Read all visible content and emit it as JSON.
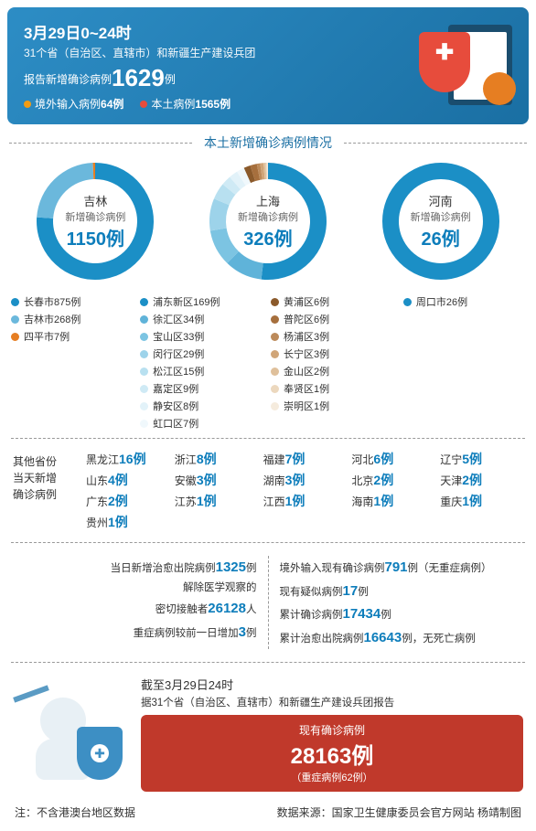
{
  "header": {
    "date": "3月29日0~24时",
    "sub": "31个省（自治区、直辖市）和新疆生产建设兵团",
    "main_prefix": "报告新增确诊病例",
    "main_num": "1629",
    "main_suffix": "例",
    "b1_label": "境外输入病例",
    "b1_num": "64例",
    "b1_color": "#f39c12",
    "b2_label": "本土病例",
    "b2_num": "1565例",
    "b2_color": "#e74c3c"
  },
  "section_title": "本土新增确诊病例情况",
  "donuts": {
    "ring_width": 18,
    "charts": [
      {
        "name": "吉林",
        "sub": "新增确诊病例",
        "num": "1150例",
        "slices": [
          {
            "label": "长春市875例",
            "value": 875,
            "color": "#1b8fc6"
          },
          {
            "label": "吉林市268例",
            "value": 268,
            "color": "#6bb8dc"
          },
          {
            "label": "四平市7例",
            "value": 7,
            "color": "#e67e22"
          }
        ]
      },
      {
        "name": "上海",
        "sub": "新增确诊病例",
        "num": "326例",
        "slices": [
          {
            "label": "浦东新区169例",
            "value": 169,
            "color": "#1b8fc6"
          },
          {
            "label": "徐汇区34例",
            "value": 34,
            "color": "#5fb3d9"
          },
          {
            "label": "宝山区33例",
            "value": 33,
            "color": "#7cc4e2"
          },
          {
            "label": "闵行区29例",
            "value": 29,
            "color": "#9dd3ea"
          },
          {
            "label": "松江区15例",
            "value": 15,
            "color": "#b8e0f0"
          },
          {
            "label": "嘉定区9例",
            "value": 9,
            "color": "#cfeaf5"
          },
          {
            "label": "静安区8例",
            "value": 8,
            "color": "#e2f2f9"
          },
          {
            "label": "虹口区7例",
            "value": 7,
            "color": "#f0f8fc"
          },
          {
            "label": "黄浦区6例",
            "value": 6,
            "color": "#8b5a2b"
          },
          {
            "label": "普陀区6例",
            "value": 6,
            "color": "#a66f3d"
          },
          {
            "label": "杨浦区3例",
            "value": 3,
            "color": "#bc8a5a"
          },
          {
            "label": "长宁区3例",
            "value": 3,
            "color": "#d0a578"
          },
          {
            "label": "金山区2例",
            "value": 2,
            "color": "#dfc09b"
          },
          {
            "label": "奉贤区1例",
            "value": 1,
            "color": "#ecd8be"
          },
          {
            "label": "崇明区1例",
            "value": 1,
            "color": "#f5ebdd"
          }
        ]
      },
      {
        "name": "河南",
        "sub": "新增确诊病例",
        "num": "26例",
        "slices": [
          {
            "label": "周口市26例",
            "value": 26,
            "color": "#1b8fc6"
          }
        ]
      }
    ]
  },
  "others": {
    "label_l1": "其他省份",
    "label_l2": "当天新增",
    "label_l3": "确诊病例",
    "items": [
      {
        "name": "黑龙江",
        "num": "16例"
      },
      {
        "name": "浙江",
        "num": "8例"
      },
      {
        "name": "福建",
        "num": "7例"
      },
      {
        "name": "河北",
        "num": "6例"
      },
      {
        "name": "辽宁",
        "num": "5例"
      },
      {
        "name": "山东",
        "num": "4例"
      },
      {
        "name": "安徽",
        "num": "3例"
      },
      {
        "name": "湖南",
        "num": "3例"
      },
      {
        "name": "北京",
        "num": "2例"
      },
      {
        "name": "天津",
        "num": "2例"
      },
      {
        "name": "广东",
        "num": "2例"
      },
      {
        "name": "江苏",
        "num": "1例"
      },
      {
        "name": "江西",
        "num": "1例"
      },
      {
        "name": "海南",
        "num": "1例"
      },
      {
        "name": "重庆",
        "num": "1例"
      },
      {
        "name": "贵州",
        "num": "1例"
      }
    ]
  },
  "stats_left": [
    {
      "pre": "当日新增治愈出院病例",
      "num": "1325",
      "suf": "例"
    },
    {
      "pre": "解除医学观察的",
      "num": "",
      "suf": ""
    },
    {
      "pre": "密切接触者",
      "num": "26128",
      "suf": "人"
    },
    {
      "pre": "重症病例较前一日增加",
      "num": "3",
      "suf": "例"
    }
  ],
  "stats_right": [
    {
      "pre": "境外输入现有确诊病例",
      "num": "791",
      "suf": "例（无重症病例）"
    },
    {
      "pre": "现有疑似病例",
      "num": "17",
      "suf": "例"
    },
    {
      "pre": "累计确诊病例",
      "num": "17434",
      "suf": "例"
    },
    {
      "pre": "累计治愈出院病例",
      "num": "16643",
      "suf": "例，无死亡病例"
    }
  ],
  "bottom": {
    "date": "截至3月29日24时",
    "sub": "据31个省（自治区、直辖市）和新疆生产建设兵团报告",
    "box_label": "现有确诊病例",
    "box_num": "28163例",
    "box_sm": "（重症病例62例）"
  },
  "footer": {
    "left": "注：不含港澳台地区数据",
    "right": "数据来源：国家卫生健康委员会官方网站  杨靖制图"
  }
}
